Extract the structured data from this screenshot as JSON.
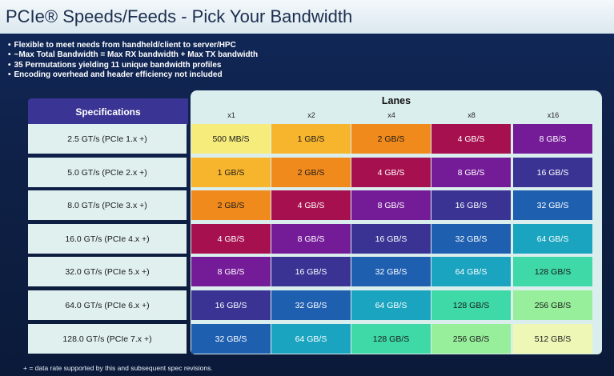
{
  "title": "PCIe® Speeds/Feeds - Pick Your Bandwidth",
  "bullets": [
    "Flexible to meet needs from handheld/client to server/HPC",
    "~Max Total Bandwidth = Max RX bandwidth + Max TX bandwidth",
    "35 Permutations yielding 11 unique bandwidth profiles",
    "Encoding overhead and header efficiency not included"
  ],
  "table": {
    "spec_header": "Specifications",
    "lanes_title": "Lanes",
    "lanes": [
      "x1",
      "x2",
      "x4",
      "x8",
      "x16"
    ],
    "rows": [
      {
        "spec": "2.5 GT/s (PCIe 1.x +)",
        "values": [
          "500 MB/S",
          "1 GB/S",
          "2 GB/S",
          "4 GB/S",
          "8 GB/S"
        ]
      },
      {
        "spec": "5.0 GT/s (PCIe 2.x +)",
        "values": [
          "1 GB/S",
          "2 GB/S",
          "4 GB/S",
          "8 GB/S",
          "16 GB/S"
        ]
      },
      {
        "spec": "8.0 GT/s (PCIe 3.x +)",
        "values": [
          "2 GB/S",
          "4 GB/S",
          "8 GB/S",
          "16 GB/S",
          "32 GB/S"
        ]
      },
      {
        "spec": "16.0 GT/s (PCIe 4.x +)",
        "values": [
          "4 GB/S",
          "8 GB/S",
          "16 GB/S",
          "32 GB/S",
          "64 GB/S"
        ]
      },
      {
        "spec": "32.0 GT/s (PCIe 5.x +)",
        "values": [
          "8 GB/S",
          "16 GB/S",
          "32 GB/S",
          "64 GB/S",
          "128 GB/S"
        ]
      },
      {
        "spec": "64.0 GT/s (PCIe 6.x +)",
        "values": [
          "16 GB/S",
          "32 GB/S",
          "64 GB/S",
          "128 GB/S",
          "256 GB/S"
        ]
      },
      {
        "spec": "128.0 GT/s (PCIe 7.x +)",
        "values": [
          "32 GB/S",
          "64 GB/S",
          "128 GB/S",
          "256 GB/S",
          "512 GB/S"
        ]
      }
    ]
  },
  "value_colors": {
    "500 MB/S": {
      "bg": "#f6ec7c",
      "fg": "#1a1a1a"
    },
    "1 GB/S": {
      "bg": "#f7b52e",
      "fg": "#1a1a1a"
    },
    "2 GB/S": {
      "bg": "#f18a1c",
      "fg": "#1a1a1a"
    },
    "4 GB/S": {
      "bg": "#a7104f",
      "fg": "#ffffff"
    },
    "8 GB/S": {
      "bg": "#741b98",
      "fg": "#ffffff"
    },
    "16 GB/S": {
      "bg": "#3a3394",
      "fg": "#ffffff"
    },
    "32 GB/S": {
      "bg": "#1f5fb0",
      "fg": "#ffffff"
    },
    "64 GB/S": {
      "bg": "#1aa4bf",
      "fg": "#ffffff"
    },
    "128 GB/S": {
      "bg": "#3ed9a6",
      "fg": "#1a1a1a"
    },
    "256 GB/S": {
      "bg": "#97ee9b",
      "fg": "#1a1a1a"
    },
    "512 GB/S": {
      "bg": "#eef7b5",
      "fg": "#1a1a1a"
    }
  },
  "footnote": "+ = data rate supported by this and subsequent spec revisions."
}
